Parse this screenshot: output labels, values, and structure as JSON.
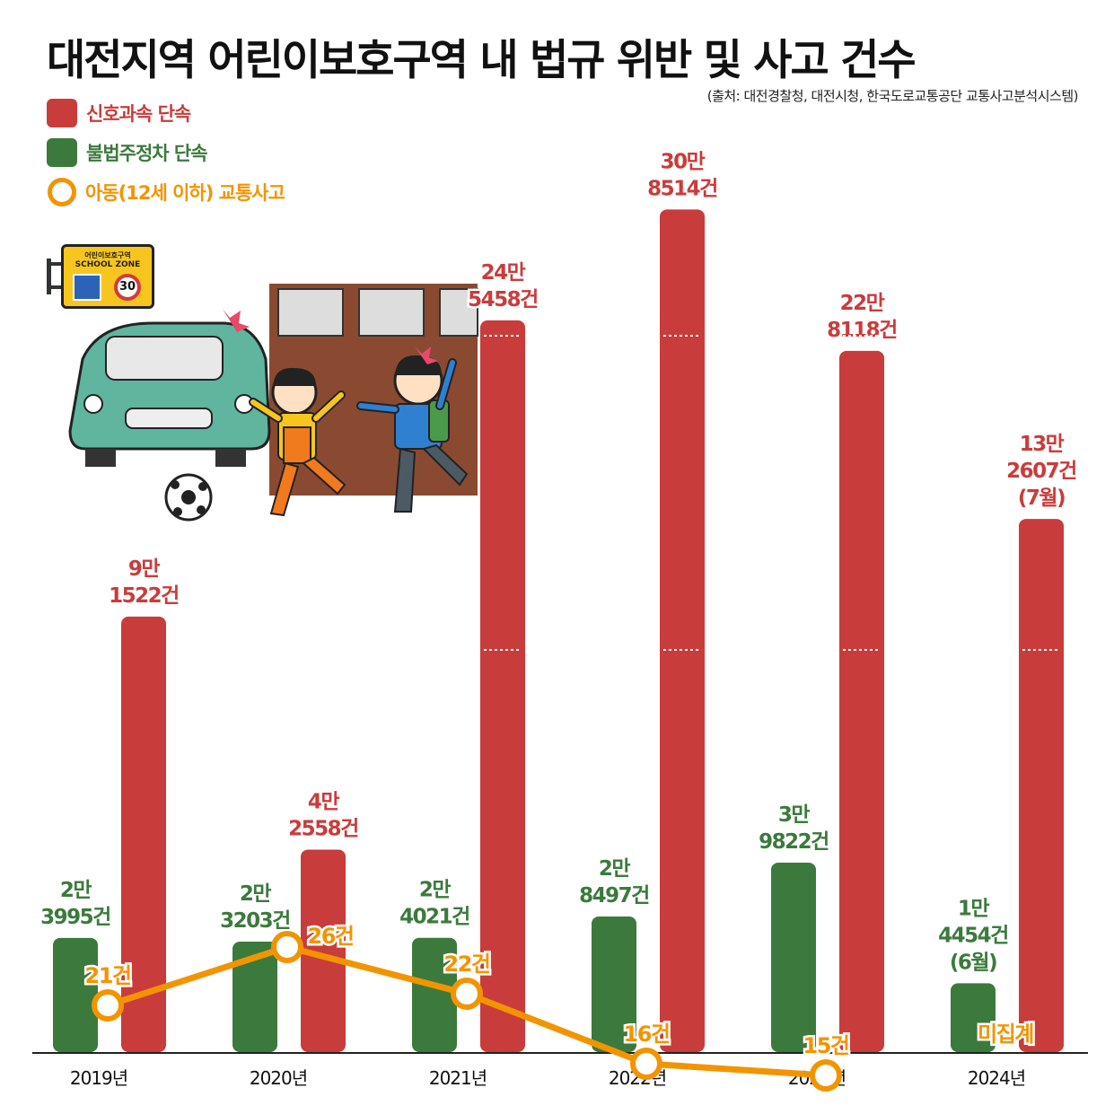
{
  "title": "대전지역 어린이보호구역 내 법규 위반 및 사고 건수",
  "source": "(출처: 대전경찰청, 대전시청, 한국도로교통공단 교통사고분석시스템)",
  "legend": [
    {
      "label": "신호과속 단속",
      "color": "#c93c3c",
      "shape": "square"
    },
    {
      "label": "불법주정차 단속",
      "color": "#3b7a3c",
      "shape": "square"
    },
    {
      "label": "아동(12세 이하) 교통사고",
      "color": "#f29400",
      "shape": "circle"
    }
  ],
  "illustration": {
    "sign_text_1": "어린이보호구역",
    "sign_text_2": "SCHOOL ZONE",
    "sign_speed": "30"
  },
  "colors": {
    "speed": "#c93c3c",
    "parking": "#3b7a3c",
    "accident": "#f29400"
  },
  "chart_data": {
    "type": "bar",
    "categories": [
      "2019년",
      "2020년",
      "2021년",
      "2022년",
      "2023년",
      "2024년"
    ],
    "series": [
      {
        "name": "불법주정차 단속",
        "type": "bar",
        "values": [
          23995,
          23203,
          24021,
          28497,
          39822,
          14454
        ],
        "labels": [
          [
            "2만",
            "3995건"
          ],
          [
            "2만",
            "3203건"
          ],
          [
            "2만",
            "4021건"
          ],
          [
            "2만",
            "8497건"
          ],
          [
            "3만",
            "9822건"
          ],
          [
            "1만",
            "4454건",
            "(6월)"
          ]
        ]
      },
      {
        "name": "신호과속 단속",
        "type": "bar",
        "values": [
          91522,
          42558,
          245458,
          308514,
          228118,
          132607
        ],
        "labels": [
          [
            "9만",
            "1522건"
          ],
          [
            "4만",
            "2558건"
          ],
          [
            "24만",
            "5458건"
          ],
          [
            "30만",
            "8514건"
          ],
          [
            "22만",
            "8118건"
          ],
          [
            "13만",
            "2607건",
            "(7월)"
          ]
        ]
      },
      {
        "name": "아동(12세 이하) 교통사고",
        "type": "line",
        "values": [
          21,
          26,
          22,
          16,
          15,
          null
        ],
        "labels": [
          "21건",
          "26건",
          "22건",
          "16건",
          "15건",
          "미집계"
        ]
      }
    ]
  }
}
